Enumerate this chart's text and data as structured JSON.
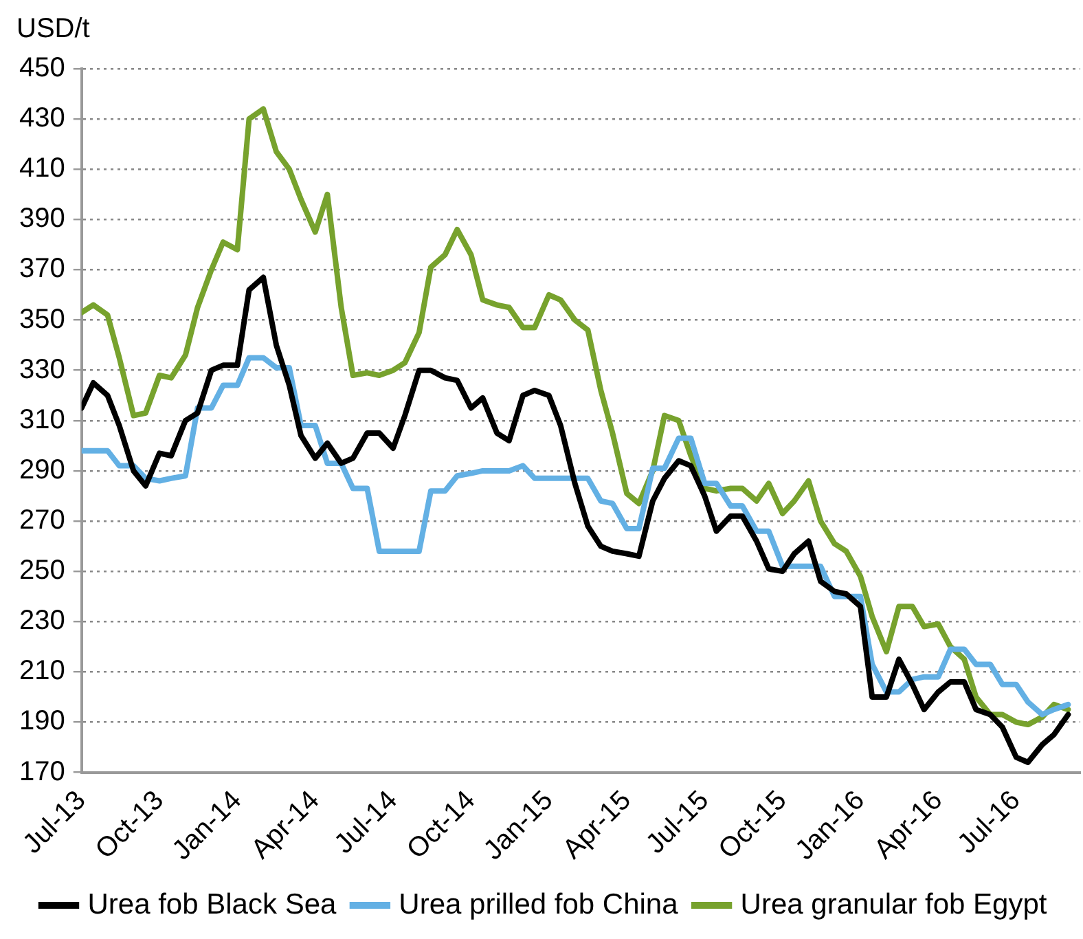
{
  "chart_data": {
    "type": "line",
    "ylabel": "USD/t",
    "x": [
      "2013-07-01",
      "2013-07-15",
      "2013-08-01",
      "2013-08-15",
      "2013-09-01",
      "2013-09-15",
      "2013-10-01",
      "2013-10-15",
      "2013-11-01",
      "2013-11-15",
      "2013-12-01",
      "2013-12-15",
      "2014-01-01",
      "2014-01-15",
      "2014-02-01",
      "2014-02-15",
      "2014-03-01",
      "2014-03-15",
      "2014-04-01",
      "2014-04-15",
      "2014-05-01",
      "2014-05-15",
      "2014-06-01",
      "2014-06-15",
      "2014-07-01",
      "2014-07-15",
      "2014-08-01",
      "2014-08-15",
      "2014-09-01",
      "2014-09-15",
      "2014-10-01",
      "2014-10-15",
      "2014-11-01",
      "2014-11-15",
      "2014-12-01",
      "2014-12-15",
      "2015-01-01",
      "2015-01-15",
      "2015-02-01",
      "2015-02-15",
      "2015-03-01",
      "2015-03-15",
      "2015-04-01",
      "2015-04-15",
      "2015-05-01",
      "2015-05-15",
      "2015-06-01",
      "2015-06-15",
      "2015-07-01",
      "2015-07-15",
      "2015-08-01",
      "2015-08-15",
      "2015-09-01",
      "2015-09-15",
      "2015-10-01",
      "2015-10-15",
      "2015-11-01",
      "2015-11-15",
      "2015-12-01",
      "2015-12-15",
      "2016-01-01",
      "2016-01-15",
      "2016-02-01",
      "2016-02-15",
      "2016-03-01",
      "2016-03-15",
      "2016-04-01",
      "2016-04-15",
      "2016-05-01",
      "2016-05-15",
      "2016-06-01",
      "2016-06-15",
      "2016-07-01",
      "2016-07-15",
      "2016-08-01",
      "2016-08-15",
      "2016-09-01"
    ],
    "series": [
      {
        "name": "Urea fob Black Sea",
        "color": "#000000",
        "values": [
          315,
          325,
          320,
          308,
          290,
          284,
          297,
          296,
          310,
          313,
          330,
          332,
          332,
          362,
          367,
          340,
          324,
          304,
          295,
          301,
          293,
          295,
          305,
          305,
          299,
          312,
          330,
          330,
          327,
          326,
          315,
          319,
          305,
          302,
          320,
          322,
          320,
          308,
          285,
          268,
          260,
          258,
          257,
          256,
          278,
          287,
          294,
          292,
          280,
          266,
          272,
          272,
          262,
          251,
          250,
          257,
          262,
          246,
          242,
          241,
          236,
          200,
          200,
          215,
          205,
          195,
          202,
          206,
          206,
          195,
          193,
          188,
          176,
          174,
          181,
          185,
          193
        ]
      },
      {
        "name": "Urea prilled fob China",
        "color": "#63b0e4",
        "values": [
          298,
          298,
          298,
          292,
          292,
          287,
          286,
          287,
          288,
          315,
          315,
          324,
          324,
          335,
          335,
          331,
          331,
          308,
          308,
          293,
          293,
          283,
          283,
          258,
          258,
          258,
          258,
          282,
          282,
          288,
          289,
          290,
          290,
          290,
          292,
          287,
          287,
          287,
          287,
          287,
          278,
          277,
          267,
          267,
          291,
          291,
          303,
          303,
          285,
          285,
          276,
          276,
          266,
          266,
          252,
          252,
          252,
          252,
          240,
          240,
          240,
          213,
          202,
          202,
          207,
          208,
          208,
          219,
          219,
          213,
          213,
          205,
          205,
          198,
          193,
          195,
          197
        ]
      },
      {
        "name": "Urea granular fob Egypt",
        "color": "#77a22d",
        "values": [
          353,
          356,
          352,
          335,
          312,
          313,
          328,
          327,
          336,
          355,
          370,
          381,
          378,
          430,
          434,
          417,
          410,
          398,
          385,
          400,
          355,
          328,
          329,
          328,
          330,
          333,
          345,
          371,
          376,
          386,
          376,
          358,
          356,
          355,
          347,
          347,
          360,
          358,
          350,
          346,
          322,
          305,
          281,
          277,
          290,
          312,
          310,
          296,
          283,
          282,
          283,
          283,
          278,
          285,
          273,
          278,
          286,
          270,
          261,
          258,
          248,
          232,
          218,
          236,
          236,
          228,
          229,
          220,
          215,
          200,
          193,
          193,
          190,
          189,
          192,
          197,
          195
        ]
      }
    ],
    "xlim": [
      "2013-07-01",
      "2016-09-15"
    ],
    "xticks": [
      {
        "value": "2013-07-01",
        "label": "Jul-13"
      },
      {
        "value": "2013-10-01",
        "label": "Oct-13"
      },
      {
        "value": "2014-01-01",
        "label": "Jan-14"
      },
      {
        "value": "2014-04-01",
        "label": "Apr-14"
      },
      {
        "value": "2014-07-01",
        "label": "Jul-14"
      },
      {
        "value": "2014-10-01",
        "label": "Oct-14"
      },
      {
        "value": "2015-01-01",
        "label": "Jan-15"
      },
      {
        "value": "2015-04-01",
        "label": "Apr-15"
      },
      {
        "value": "2015-07-01",
        "label": "Jul-15"
      },
      {
        "value": "2015-10-01",
        "label": "Oct-15"
      },
      {
        "value": "2016-01-01",
        "label": "Jan-16"
      },
      {
        "value": "2016-04-01",
        "label": "Apr-16"
      },
      {
        "value": "2016-07-01",
        "label": "Jul-16"
      }
    ],
    "ylim": [
      170,
      450
    ],
    "yticks": [
      170,
      190,
      210,
      230,
      250,
      270,
      290,
      310,
      330,
      350,
      370,
      390,
      410,
      430,
      450
    ],
    "grid": "y",
    "legend": "bottom",
    "marker": "none",
    "line_style": "solid"
  }
}
